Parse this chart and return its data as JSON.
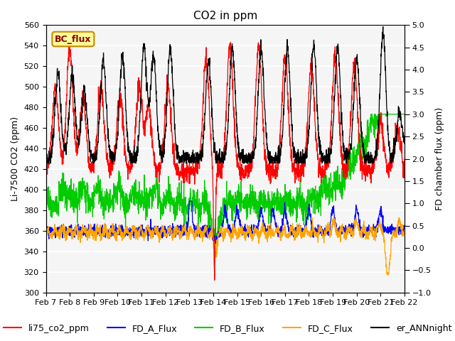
{
  "title": "CO2 in ppm",
  "ylabel_left": "Li-7500 CO2 (ppm)",
  "ylabel_right": "FD chamber flux (ppm)",
  "ylim_left": [
    300,
    560
  ],
  "ylim_right": [
    -1.0,
    5.0
  ],
  "yticks_left": [
    300,
    320,
    340,
    360,
    380,
    400,
    420,
    440,
    460,
    480,
    500,
    520,
    540,
    560
  ],
  "yticks_right": [
    -1.0,
    -0.5,
    0.0,
    0.5,
    1.0,
    1.5,
    2.0,
    2.5,
    3.0,
    3.5,
    4.0,
    4.5,
    5.0
  ],
  "xtick_labels": [
    "Feb 7",
    "Feb 8",
    "Feb 9",
    "Feb 10",
    "Feb 11",
    "Feb 12",
    "Feb 13",
    "Feb 14",
    "Feb 15",
    "Feb 16",
    "Feb 17",
    "Feb 18",
    "Feb 19",
    "Feb 20",
    "Feb 21",
    "Feb 22"
  ],
  "colors": {
    "li75_co2_ppm": "#ff0000",
    "FD_A_Flux": "#0000ff",
    "FD_B_Flux": "#00cc00",
    "FD_C_Flux": "#ffa500",
    "er_ANNnight": "#000000"
  },
  "bc_flux_box_color": "#ffff99",
  "bc_flux_border_color": "#cc8800",
  "plot_bg_color": "#f5f5f5",
  "grid_color": "#ffffff",
  "title_fontsize": 11,
  "label_fontsize": 9,
  "tick_fontsize": 8,
  "legend_fontsize": 9
}
